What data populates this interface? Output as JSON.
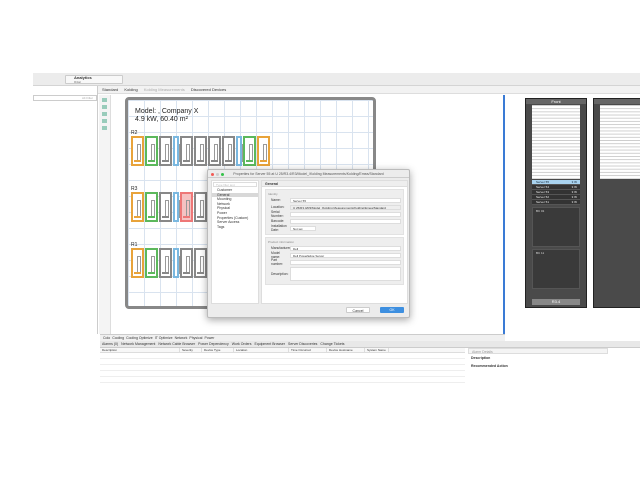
{
  "app": {
    "workspace": "Analytics",
    "workspace_sub": "Rittal",
    "search_placeholder": "Alt Filter"
  },
  "toolbar": {
    "items": [
      "Standard",
      "Kolding",
      "Kolding Measurements",
      "Discovered Devices"
    ]
  },
  "floorplan": {
    "model_line1": "Model: ,  Company X",
    "model_line2": "4.9 kW,  60.40 m²",
    "rows": [
      {
        "label": "R2",
        "colors": [
          "#e8a33a",
          "#5cb85c",
          "#888",
          "#7ab8e0",
          "#888",
          "#888",
          "#888",
          "#888",
          "#7ab8e0",
          "#5cb85c",
          "#e8a33a"
        ]
      },
      {
        "label": "R3",
        "colors": [
          "#e8a33a",
          "#5cb85c",
          "#888",
          "#7ab8e0",
          "#e77",
          "#888",
          "#888",
          "#888",
          "#7ab8e0",
          "#5cb85c",
          "#e8a33a"
        ]
      },
      {
        "label": "R1",
        "colors": [
          "#e8a33a",
          "#5cb85c",
          "#888",
          "#7ab8e0",
          "#888",
          "#888",
          "#888",
          "#888",
          "#7ab8e0",
          "#5cb85c",
          "#e8a33a"
        ]
      }
    ]
  },
  "rack": {
    "header": "Front",
    "servers": [
      {
        "name": "Server 55",
        "power": "3 W"
      },
      {
        "name": "Server 54",
        "power": "3 W"
      },
      {
        "name": "Server 53",
        "power": "3 W"
      },
      {
        "name": "Server 52",
        "power": "3 W"
      },
      {
        "name": "Server 51",
        "power": "3 W"
      }
    ],
    "device1": "BC 01",
    "device2": "BC 11",
    "footer": "R3.4"
  },
  "bottom_tabs": [
    "Colo",
    "Cooling",
    "Cooling Optimize",
    "IT Optimize",
    "Network",
    "Physical",
    "Power"
  ],
  "panel_tabs": [
    "Alarms (0)",
    "Network Management",
    "Network Cable Browser",
    "Power Dependency",
    "Work Orders",
    "Equipment Browser",
    "Server Discoveries",
    "Change Tickets"
  ],
  "alarm_table": {
    "columns": [
      "Description",
      "Severity",
      "Device Type",
      "Location",
      "Time Occurred",
      "Device Hostname",
      "System Name"
    ]
  },
  "alarm_details": {
    "title": "Alarm Details",
    "description": "Description",
    "action": "Recommended Action"
  },
  "dialog": {
    "title": "Properties for Server 55 at U 25/R3.4/R3/Model_/Kolding Measurements/Kolding/Emea/Standard",
    "filter_placeholder": "Type filter text",
    "nav": [
      "Customer",
      "General",
      "Mounting",
      "Network",
      "Physical",
      "Power",
      "Properties (Custom)",
      "Server Access",
      "Tags"
    ],
    "selected_nav": "General",
    "section": "General",
    "identity": {
      "title": "Identity",
      "fields": [
        {
          "label": "Name:",
          "value": "Server 55"
        },
        {
          "label": "Location:",
          "value": "U 25/R3.4/R3/Model_/Kolding Measurements/Kolding/Emea/Standard"
        },
        {
          "label": "Serial Number:",
          "value": ""
        },
        {
          "label": "Barcode:",
          "value": ""
        },
        {
          "label": "Installation Date:",
          "value": "Not set"
        }
      ]
    },
    "product": {
      "title": "Product information",
      "fields": [
        {
          "label": "Manufacturer:",
          "value": "Dell"
        },
        {
          "label": "Model name:",
          "value": "Dell PowerEdge Server"
        },
        {
          "label": "Part number:",
          "value": ""
        },
        {
          "label": "Description:",
          "value": ""
        }
      ]
    },
    "cancel": "Cancel",
    "ok": "OK"
  }
}
